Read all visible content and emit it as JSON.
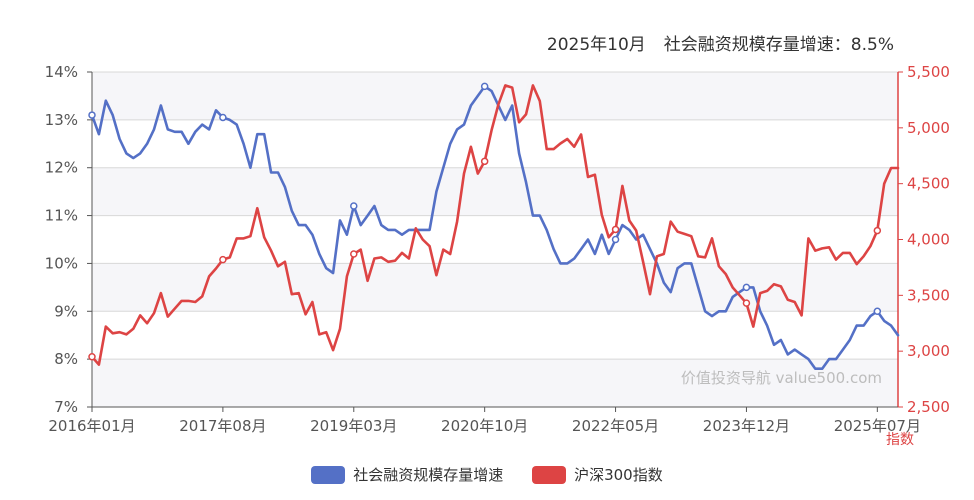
{
  "headline": {
    "period": "2025年10月",
    "metric_label": "社会融资规模存量增速：",
    "metric_value": "8.5%"
  },
  "watermark": "价值投资导航 value500.com",
  "colors": {
    "blue": "#5470c6",
    "red": "#dd4444",
    "grid": "#d8d8d8",
    "band": "#f6f6f9"
  },
  "chart_data": {
    "type": "line",
    "x_axis": {
      "start": "2016-01",
      "end": "2025-10",
      "tick_labels": [
        "2016年01月",
        "2017年08月",
        "2019年03月",
        "2020年10月",
        "2022年05月",
        "2023年12月",
        "2025年07月"
      ]
    },
    "y_left": {
      "min": 7,
      "max": 14,
      "step": 1,
      "tick_labels": [
        "7%",
        "8%",
        "9%",
        "10%",
        "11%",
        "12%",
        "13%",
        "14%"
      ]
    },
    "y_right": {
      "label": "指数",
      "min": 2500,
      "max": 5500,
      "step": 500,
      "tick_labels": [
        "2,500",
        "3,000",
        "3,500",
        "4,000",
        "4,500",
        "5,000",
        "5,500"
      ]
    },
    "series": [
      {
        "name": "社会融资规模存量增速",
        "axis": "left",
        "color": "#5470c6",
        "points": [
          [
            "2016-01",
            13.1
          ],
          [
            "2016-02",
            12.7
          ],
          [
            "2016-03",
            13.4
          ],
          [
            "2016-04",
            13.1
          ],
          [
            "2016-05",
            12.6
          ],
          [
            "2016-06",
            12.3
          ],
          [
            "2016-07",
            12.2
          ],
          [
            "2016-08",
            12.3
          ],
          [
            "2016-09",
            12.5
          ],
          [
            "2016-10",
            12.8
          ],
          [
            "2016-11",
            13.3
          ],
          [
            "2016-12",
            12.8
          ],
          [
            "2017-01",
            12.75
          ],
          [
            "2017-02",
            12.75
          ],
          [
            "2017-03",
            12.5
          ],
          [
            "2017-04",
            12.75
          ],
          [
            "2017-05",
            12.9
          ],
          [
            "2017-06",
            12.8
          ],
          [
            "2017-07",
            13.2
          ],
          [
            "2017-08",
            13.05
          ],
          [
            "2017-09",
            13.0
          ],
          [
            "2017-10",
            12.9
          ],
          [
            "2017-11",
            12.5
          ],
          [
            "2017-12",
            12.0
          ],
          [
            "2018-01",
            12.7
          ],
          [
            "2018-02",
            12.7
          ],
          [
            "2018-03",
            11.9
          ],
          [
            "2018-04",
            11.9
          ],
          [
            "2018-05",
            11.6
          ],
          [
            "2018-06",
            11.1
          ],
          [
            "2018-07",
            10.8
          ],
          [
            "2018-08",
            10.8
          ],
          [
            "2018-09",
            10.6
          ],
          [
            "2018-10",
            10.2
          ],
          [
            "2018-11",
            9.9
          ],
          [
            "2018-12",
            9.8
          ],
          [
            "2019-01",
            10.9
          ],
          [
            "2019-02",
            10.6
          ],
          [
            "2019-03",
            11.2
          ],
          [
            "2019-04",
            10.8
          ],
          [
            "2019-05",
            11.0
          ],
          [
            "2019-06",
            11.2
          ],
          [
            "2019-07",
            10.8
          ],
          [
            "2019-08",
            10.7
          ],
          [
            "2019-09",
            10.7
          ],
          [
            "2019-10",
            10.6
          ],
          [
            "2019-11",
            10.7
          ],
          [
            "2019-12",
            10.7
          ],
          [
            "2020-01",
            10.7
          ],
          [
            "2020-02",
            10.7
          ],
          [
            "2020-03",
            11.5
          ],
          [
            "2020-04",
            12.0
          ],
          [
            "2020-05",
            12.5
          ],
          [
            "2020-06",
            12.8
          ],
          [
            "2020-07",
            12.9
          ],
          [
            "2020-08",
            13.3
          ],
          [
            "2020-09",
            13.5
          ],
          [
            "2020-10",
            13.7
          ],
          [
            "2020-11",
            13.6
          ],
          [
            "2020-12",
            13.3
          ],
          [
            "2021-01",
            13.0
          ],
          [
            "2021-02",
            13.3
          ],
          [
            "2021-03",
            12.3
          ],
          [
            "2021-04",
            11.7
          ],
          [
            "2021-05",
            11.0
          ],
          [
            "2021-06",
            11.0
          ],
          [
            "2021-07",
            10.7
          ],
          [
            "2021-08",
            10.3
          ],
          [
            "2021-09",
            10.0
          ],
          [
            "2021-10",
            10.0
          ],
          [
            "2021-11",
            10.1
          ],
          [
            "2021-12",
            10.3
          ],
          [
            "2022-01",
            10.5
          ],
          [
            "2022-02",
            10.2
          ],
          [
            "2022-03",
            10.6
          ],
          [
            "2022-04",
            10.2
          ],
          [
            "2022-05",
            10.5
          ],
          [
            "2022-06",
            10.8
          ],
          [
            "2022-07",
            10.7
          ],
          [
            "2022-08",
            10.5
          ],
          [
            "2022-09",
            10.6
          ],
          [
            "2022-10",
            10.3
          ],
          [
            "2022-11",
            10.0
          ],
          [
            "2022-12",
            9.6
          ],
          [
            "2023-01",
            9.4
          ],
          [
            "2023-02",
            9.9
          ],
          [
            "2023-03",
            10.0
          ],
          [
            "2023-04",
            10.0
          ],
          [
            "2023-05",
            9.5
          ],
          [
            "2023-06",
            9.0
          ],
          [
            "2023-07",
            8.9
          ],
          [
            "2023-08",
            9.0
          ],
          [
            "2023-09",
            9.0
          ],
          [
            "2023-10",
            9.3
          ],
          [
            "2023-11",
            9.4
          ],
          [
            "2023-12",
            9.5
          ],
          [
            "2024-01",
            9.5
          ],
          [
            "2024-02",
            9.0
          ],
          [
            "2024-03",
            8.7
          ],
          [
            "2024-04",
            8.3
          ],
          [
            "2024-05",
            8.4
          ],
          [
            "2024-06",
            8.1
          ],
          [
            "2024-07",
            8.2
          ],
          [
            "2024-08",
            8.1
          ],
          [
            "2024-09",
            8.0
          ],
          [
            "2024-10",
            7.8
          ],
          [
            "2024-11",
            7.8
          ],
          [
            "2024-12",
            8.0
          ],
          [
            "2025-01",
            8.0
          ],
          [
            "2025-02",
            8.2
          ],
          [
            "2025-03",
            8.4
          ],
          [
            "2025-04",
            8.7
          ],
          [
            "2025-05",
            8.7
          ],
          [
            "2025-06",
            8.9
          ],
          [
            "2025-07",
            9.0
          ],
          [
            "2025-08",
            8.8
          ],
          [
            "2025-09",
            8.7
          ],
          [
            "2025-10",
            8.5
          ]
        ]
      },
      {
        "name": "沪深300指数",
        "axis": "right",
        "color": "#dd4444",
        "points": [
          [
            "2016-01",
            2950
          ],
          [
            "2016-02",
            2880
          ],
          [
            "2016-03",
            3220
          ],
          [
            "2016-04",
            3160
          ],
          [
            "2016-05",
            3170
          ],
          [
            "2016-06",
            3150
          ],
          [
            "2016-07",
            3200
          ],
          [
            "2016-08",
            3320
          ],
          [
            "2016-09",
            3250
          ],
          [
            "2016-10",
            3340
          ],
          [
            "2016-11",
            3520
          ],
          [
            "2016-12",
            3310
          ],
          [
            "2017-01",
            3380
          ],
          [
            "2017-02",
            3450
          ],
          [
            "2017-03",
            3450
          ],
          [
            "2017-04",
            3440
          ],
          [
            "2017-05",
            3490
          ],
          [
            "2017-06",
            3670
          ],
          [
            "2017-07",
            3740
          ],
          [
            "2017-08",
            3820
          ],
          [
            "2017-09",
            3840
          ],
          [
            "2017-10",
            4010
          ],
          [
            "2017-11",
            4010
          ],
          [
            "2017-12",
            4030
          ],
          [
            "2018-01",
            4280
          ],
          [
            "2018-02",
            4020
          ],
          [
            "2018-03",
            3900
          ],
          [
            "2018-04",
            3760
          ],
          [
            "2018-05",
            3800
          ],
          [
            "2018-06",
            3510
          ],
          [
            "2018-07",
            3520
          ],
          [
            "2018-08",
            3330
          ],
          [
            "2018-09",
            3440
          ],
          [
            "2018-10",
            3150
          ],
          [
            "2018-11",
            3170
          ],
          [
            "2018-12",
            3010
          ],
          [
            "2019-01",
            3200
          ],
          [
            "2019-02",
            3670
          ],
          [
            "2019-03",
            3870
          ],
          [
            "2019-04",
            3910
          ],
          [
            "2019-05",
            3630
          ],
          [
            "2019-06",
            3830
          ],
          [
            "2019-07",
            3840
          ],
          [
            "2019-08",
            3800
          ],
          [
            "2019-09",
            3810
          ],
          [
            "2019-10",
            3880
          ],
          [
            "2019-11",
            3830
          ],
          [
            "2019-12",
            4100
          ],
          [
            "2020-01",
            4000
          ],
          [
            "2020-02",
            3940
          ],
          [
            "2020-03",
            3680
          ],
          [
            "2020-04",
            3910
          ],
          [
            "2020-05",
            3870
          ],
          [
            "2020-06",
            4160
          ],
          [
            "2020-07",
            4590
          ],
          [
            "2020-08",
            4830
          ],
          [
            "2020-09",
            4590
          ],
          [
            "2020-10",
            4700
          ],
          [
            "2020-11",
            4980
          ],
          [
            "2020-12",
            5210
          ],
          [
            "2021-01",
            5380
          ],
          [
            "2021-02",
            5360
          ],
          [
            "2021-03",
            5050
          ],
          [
            "2021-04",
            5120
          ],
          [
            "2021-05",
            5380
          ],
          [
            "2021-06",
            5240
          ],
          [
            "2021-07",
            4810
          ],
          [
            "2021-08",
            4810
          ],
          [
            "2021-09",
            4860
          ],
          [
            "2021-10",
            4900
          ],
          [
            "2021-11",
            4830
          ],
          [
            "2021-12",
            4940
          ],
          [
            "2022-01",
            4560
          ],
          [
            "2022-02",
            4580
          ],
          [
            "2022-03",
            4220
          ],
          [
            "2022-04",
            4020
          ],
          [
            "2022-05",
            4090
          ],
          [
            "2022-06",
            4480
          ],
          [
            "2022-07",
            4170
          ],
          [
            "2022-08",
            4080
          ],
          [
            "2022-09",
            3800
          ],
          [
            "2022-10",
            3510
          ],
          [
            "2022-11",
            3850
          ],
          [
            "2022-12",
            3870
          ],
          [
            "2023-01",
            4160
          ],
          [
            "2023-02",
            4070
          ],
          [
            "2023-03",
            4050
          ],
          [
            "2023-04",
            4030
          ],
          [
            "2023-05",
            3850
          ],
          [
            "2023-06",
            3840
          ],
          [
            "2023-07",
            4010
          ],
          [
            "2023-08",
            3760
          ],
          [
            "2023-09",
            3690
          ],
          [
            "2023-10",
            3570
          ],
          [
            "2023-11",
            3500
          ],
          [
            "2023-12",
            3430
          ],
          [
            "2024-01",
            3220
          ],
          [
            "2024-02",
            3520
          ],
          [
            "2024-03",
            3540
          ],
          [
            "2024-04",
            3600
          ],
          [
            "2024-05",
            3580
          ],
          [
            "2024-06",
            3460
          ],
          [
            "2024-07",
            3440
          ],
          [
            "2024-08",
            3320
          ],
          [
            "2024-09",
            4010
          ],
          [
            "2024-10",
            3900
          ],
          [
            "2024-11",
            3920
          ],
          [
            "2024-12",
            3930
          ],
          [
            "2025-01",
            3820
          ],
          [
            "2025-02",
            3880
          ],
          [
            "2025-03",
            3880
          ],
          [
            "2025-04",
            3780
          ],
          [
            "2025-05",
            3850
          ],
          [
            "2025-06",
            3940
          ],
          [
            "2025-07",
            4080
          ],
          [
            "2025-08",
            4500
          ],
          [
            "2025-09",
            4640
          ],
          [
            "2025-10",
            4640
          ]
        ]
      }
    ],
    "legend": [
      "社会融资规模存量增速",
      "沪深300指数"
    ],
    "legend_position": "bottom-center",
    "grid": true
  }
}
